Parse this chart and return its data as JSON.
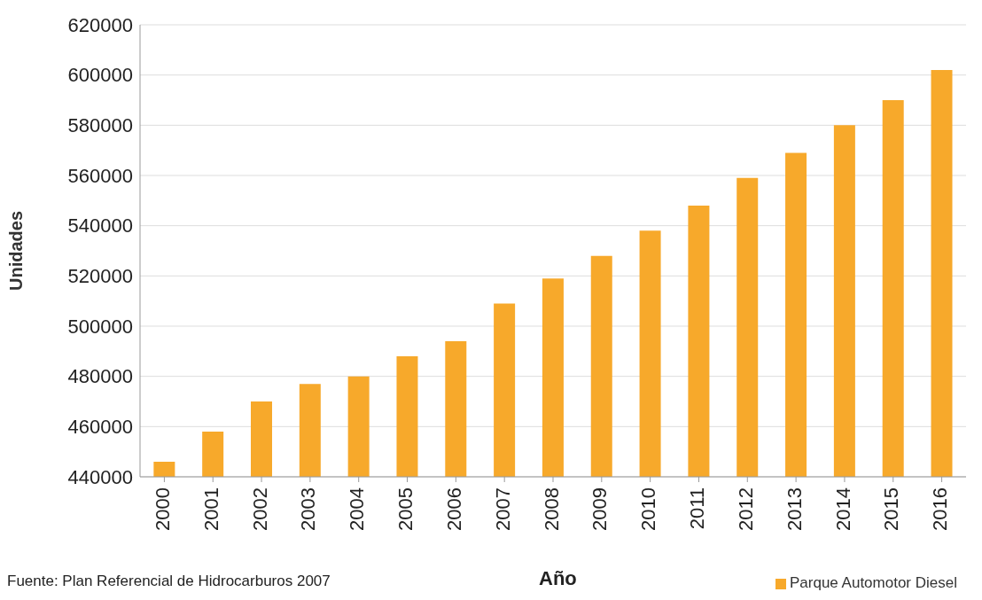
{
  "chart_data": {
    "type": "bar",
    "xlabel": "Año",
    "ylabel": "Unidades",
    "annotations": [
      "Fuente: Plan Referencial de Hidrocarburos 2007"
    ],
    "categories": [
      "2000",
      "2001",
      "2002",
      "2003",
      "2004",
      "2005",
      "2006",
      "2007",
      "2008",
      "2009",
      "2010",
      "2011",
      "2012",
      "2013",
      "2014",
      "2015",
      "2016"
    ],
    "series": [
      {
        "name": "Parque Automotor Diesel",
        "color": "#f7a92b",
        "values": [
          446000,
          458000,
          470000,
          477000,
          480000,
          488000,
          494000,
          509000,
          519000,
          528000,
          538000,
          548000,
          559000,
          569000,
          580000,
          590000,
          602000
        ]
      }
    ],
    "ylim": [
      440000,
      620000
    ],
    "yticks": [
      440000,
      460000,
      480000,
      500000,
      520000,
      540000,
      560000,
      580000,
      600000,
      620000
    ],
    "grid": "y",
    "legend": "bottom right"
  }
}
